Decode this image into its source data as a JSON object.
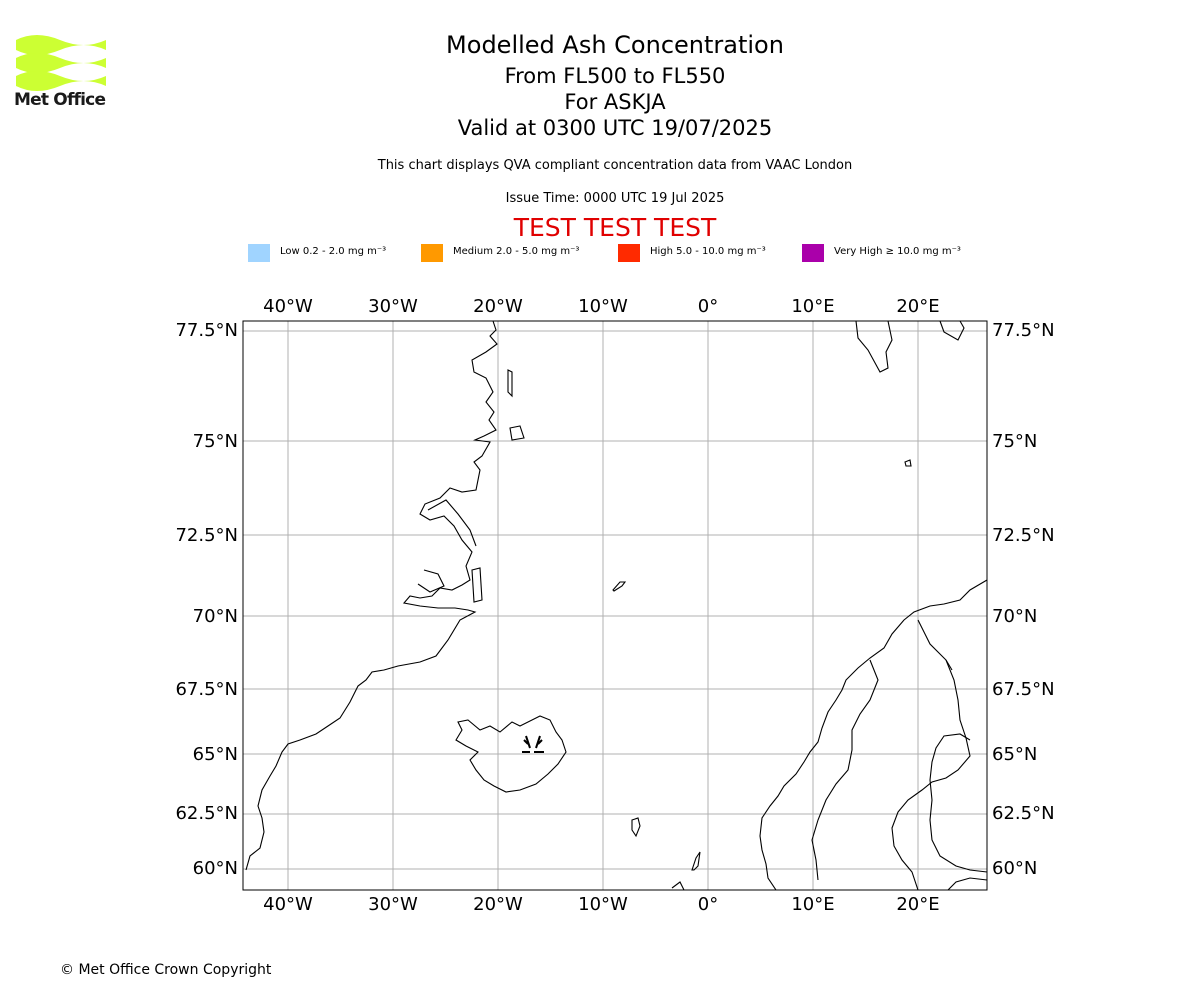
{
  "logo": {
    "text": "Met Office",
    "color": "#ccff33"
  },
  "title": {
    "line1": "Modelled Ash Concentration",
    "line2": "From FL500 to FL550",
    "line3": "For ASKJA",
    "line4": "Valid at 0300 UTC 19/07/2025"
  },
  "subtitle": "This chart displays QVA compliant concentration data from VAAC London",
  "issue_time": "Issue Time: 0000 UTC 19 Jul 2025",
  "test_banner": "TEST TEST TEST",
  "legend": [
    {
      "label": "Low 0.2 - 2.0 mg m⁻³",
      "color": "#a0d4ff"
    },
    {
      "label": "Medium 2.0 - 5.0 mg m⁻³",
      "color": "#ff9900"
    },
    {
      "label": "High 5.0 - 10.0 mg m⁻³",
      "color": "#ff2a00"
    },
    {
      "label": "Very High  ≥  10.0 mg m⁻³",
      "color": "#aa00aa"
    }
  ],
  "map": {
    "lon_labels": [
      "40°W",
      "30°W",
      "20°W",
      "10°W",
      "0°",
      "10°E",
      "20°E"
    ],
    "lat_labels": [
      "77.5°N",
      "75°N",
      "72.5°N",
      "70°N",
      "67.5°N",
      "65°N",
      "62.5°N",
      "60°N"
    ],
    "volcano": "ASKJA",
    "coastline_color": "#000000",
    "grid_color": "#b0b0b0"
  },
  "copyright": "© Met Office Crown Copyright"
}
